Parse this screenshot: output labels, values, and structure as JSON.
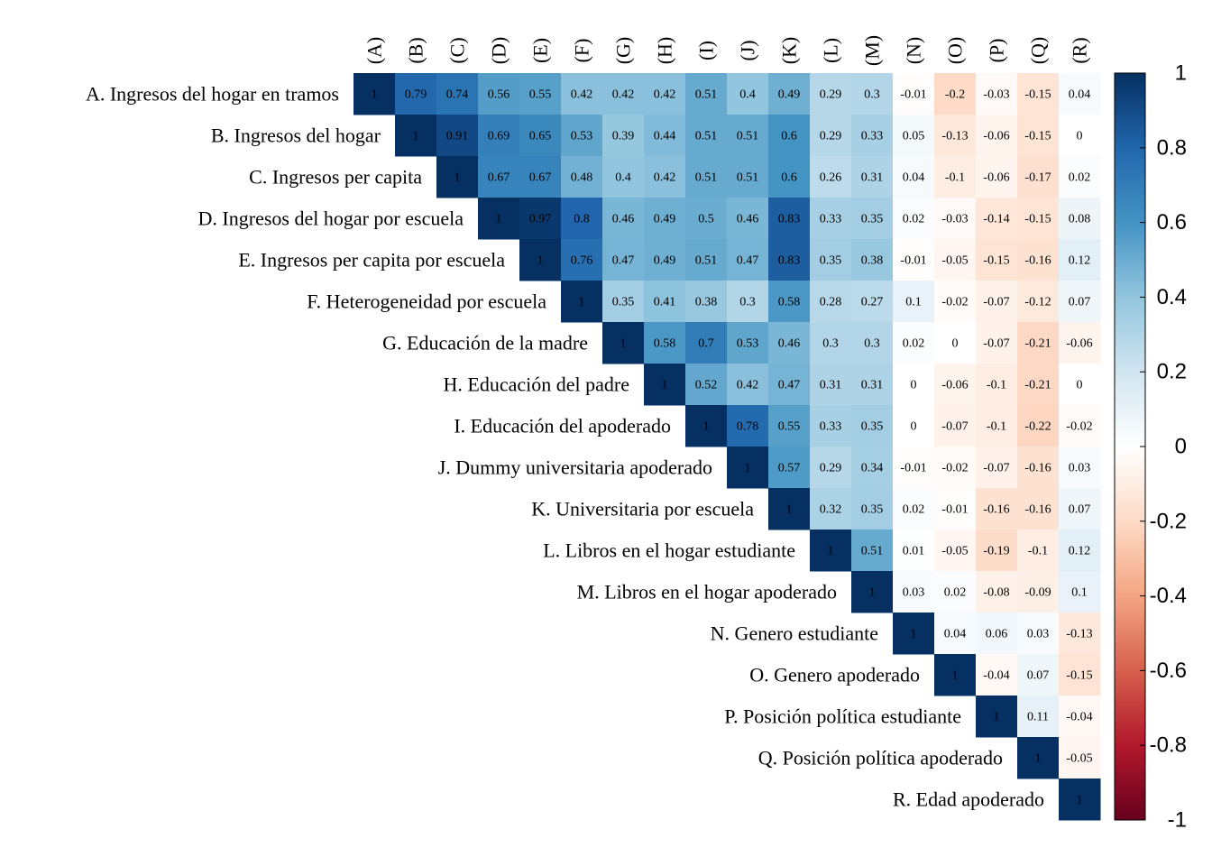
{
  "chart_data": {
    "type": "heatmap",
    "variant": "correlation-matrix-upper-triangle",
    "row_labels": [
      "A. Ingresos del hogar en tramos",
      "B. Ingresos del hogar",
      "C. Ingresos per capita",
      "D. Ingresos del hogar por escuela",
      "E. Ingresos per capita por escuela",
      "F. Heterogeneidad por escuela",
      "G. Educación de la madre",
      "H. Educación del padre",
      "I. Educación del apoderado",
      "J. Dummy universitaria apoderado",
      "K. Universitaria por escuela",
      "L. Libros en el hogar estudiante",
      "M. Libros en el hogar apoderado",
      "N. Genero estudiante",
      "O. Genero apoderado",
      "P. Posición política estudiante",
      "Q. Posición política apoderado",
      "R. Edad apoderado"
    ],
    "col_labels": [
      "(A)",
      "(B)",
      "(C)",
      "(D)",
      "(E)",
      "(F)",
      "(G)",
      "(H)",
      "(I)",
      "(J)",
      "(K)",
      "(L)",
      "(M)",
      "(N)",
      "(O)",
      "(P)",
      "(Q)",
      "(R)"
    ],
    "rows": [
      {
        "values": [
          "1",
          "0.79",
          "0.74",
          "0.56",
          "0.55",
          "0.42",
          "0.42",
          "0.42",
          "0.51",
          "0.4",
          "0.49",
          "0.29",
          "0.3",
          "-0.01",
          "-0.2",
          "-0.03",
          "-0.15",
          "0.04"
        ]
      },
      {
        "values": [
          "1",
          "0.91",
          "0.69",
          "0.65",
          "0.53",
          "0.39",
          "0.44",
          "0.51",
          "0.51",
          "0.6",
          "0.29",
          "0.33",
          "0.05",
          "-0.13",
          "-0.06",
          "-0.15",
          "0"
        ]
      },
      {
        "values": [
          "1",
          "0.67",
          "0.67",
          "0.48",
          "0.4",
          "0.42",
          "0.51",
          "0.51",
          "0.6",
          "0.26",
          "0.31",
          "0.04",
          "-0.1",
          "-0.06",
          "-0.17",
          "0.02"
        ]
      },
      {
        "values": [
          "1",
          "0.97",
          "0.8",
          "0.46",
          "0.49",
          "0.5",
          "0.46",
          "0.83",
          "0.33",
          "0.35",
          "0.02",
          "-0.03",
          "-0.14",
          "-0.15",
          "0.08"
        ]
      },
      {
        "values": [
          "1",
          "0.76",
          "0.47",
          "0.49",
          "0.51",
          "0.47",
          "0.83",
          "0.35",
          "0.38",
          "-0.01",
          "-0.05",
          "-0.15",
          "-0.16",
          "0.12"
        ]
      },
      {
        "values": [
          "1",
          "0.35",
          "0.41",
          "0.38",
          "0.3",
          "0.58",
          "0.28",
          "0.27",
          "0.1",
          "-0.02",
          "-0.07",
          "-0.12",
          "0.07"
        ]
      },
      {
        "values": [
          "1",
          "0.58",
          "0.7",
          "0.53",
          "0.46",
          "0.3",
          "0.3",
          "0.02",
          "0",
          "-0.07",
          "-0.21",
          "-0.06"
        ]
      },
      {
        "values": [
          "1",
          "0.52",
          "0.42",
          "0.47",
          "0.31",
          "0.31",
          "0",
          "-0.06",
          "-0.1",
          "-0.21",
          "0"
        ]
      },
      {
        "values": [
          "1",
          "0.78",
          "0.55",
          "0.33",
          "0.35",
          "0",
          "-0.07",
          "-0.1",
          "-0.22",
          "-0.02"
        ]
      },
      {
        "values": [
          "1",
          "0.57",
          "0.29",
          "0.34",
          "-0.01",
          "-0.02",
          "-0.07",
          "-0.16",
          "0.03"
        ]
      },
      {
        "values": [
          "1",
          "0.32",
          "0.35",
          "0.02",
          "-0.01",
          "-0.16",
          "-0.16",
          "0.07"
        ]
      },
      {
        "values": [
          "1",
          "0.51",
          "0.01",
          "-0.05",
          "-0.19",
          "-0.1",
          "0.12"
        ]
      },
      {
        "values": [
          "1",
          "0.03",
          "0.02",
          "-0.08",
          "-0.09",
          "0.1"
        ]
      },
      {
        "values": [
          "1",
          "0.04",
          "0.06",
          "0.03",
          "-0.13"
        ]
      },
      {
        "values": [
          "1",
          "-0.04",
          "0.07",
          "-0.15"
        ]
      },
      {
        "values": [
          "1",
          "0.11",
          "-0.04"
        ]
      },
      {
        "values": [
          "1",
          "-0.05"
        ]
      },
      {
        "values": [
          "1"
        ]
      }
    ],
    "colorbar": {
      "range": [
        -1,
        1
      ],
      "ticks": [
        "1",
        "0.8",
        "0.6",
        "0.4",
        "0.2",
        "0",
        "-0.2",
        "-0.4",
        "-0.6",
        "-0.8",
        "-1"
      ],
      "colors": [
        "#67001F",
        "#B2182B",
        "#D6604D",
        "#F4A582",
        "#FDDBC7",
        "#FFFFFF",
        "#D1E5F0",
        "#92C5DE",
        "#4393C3",
        "#2166AC",
        "#053061"
      ]
    }
  }
}
